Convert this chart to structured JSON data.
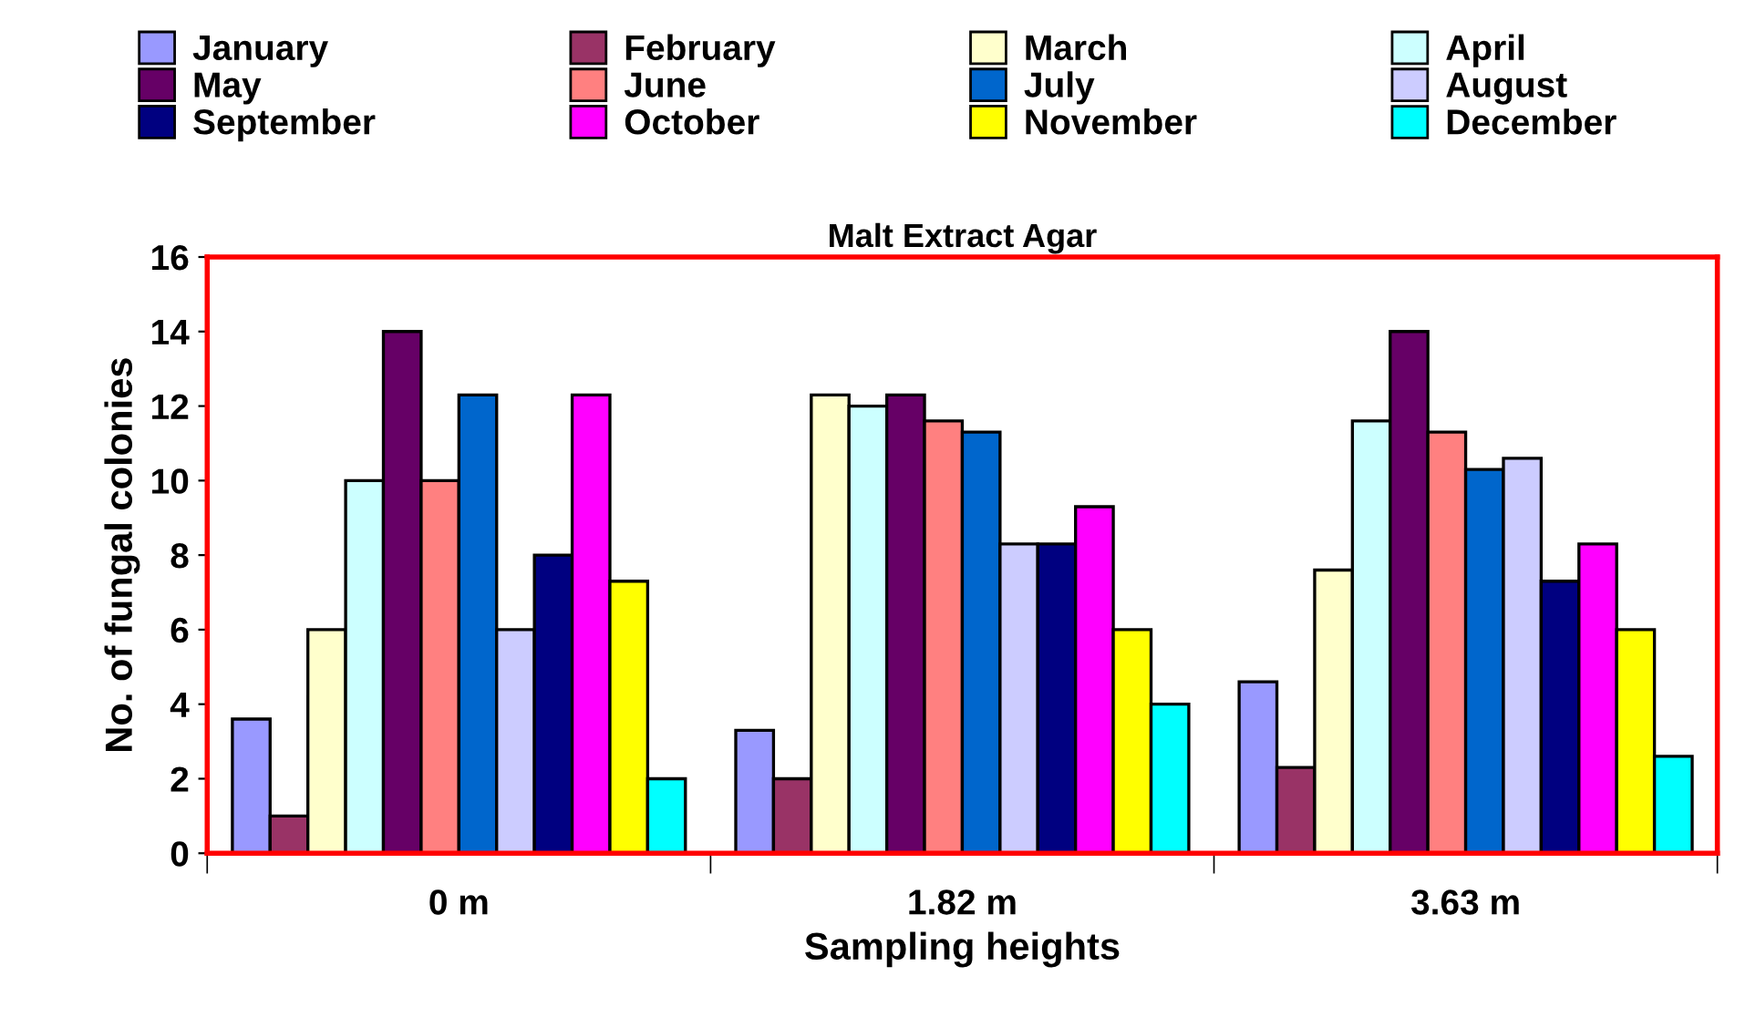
{
  "chart_data": {
    "type": "bar",
    "title": "Malt Extract Agar",
    "xlabel": "Sampling heights",
    "ylabel": "No. of fungal colonies",
    "categories": [
      "0 m",
      "1.82 m",
      "3.63 m"
    ],
    "series": [
      {
        "name": "January",
        "color": "#9999ff",
        "values": [
          3.6,
          3.3,
          4.6
        ]
      },
      {
        "name": "February",
        "color": "#993366",
        "values": [
          1,
          2,
          2.3
        ]
      },
      {
        "name": "March",
        "color": "#ffffcc",
        "values": [
          6,
          12.3,
          7.6
        ]
      },
      {
        "name": "April",
        "color": "#ccffff",
        "values": [
          10,
          12,
          11.6
        ]
      },
      {
        "name": "May",
        "color": "#660066",
        "values": [
          14,
          12.3,
          14
        ]
      },
      {
        "name": "June",
        "color": "#ff8080",
        "values": [
          10,
          11.6,
          11.3
        ]
      },
      {
        "name": "July",
        "color": "#0066cc",
        "values": [
          12.3,
          11.3,
          10.3
        ]
      },
      {
        "name": "August",
        "color": "#ccccff",
        "values": [
          6,
          8.3,
          10.6
        ]
      },
      {
        "name": "September",
        "color": "#000080",
        "values": [
          8,
          8.3,
          7.3
        ]
      },
      {
        "name": "October",
        "color": "#ff00ff",
        "values": [
          12.3,
          9.3,
          8.3
        ]
      },
      {
        "name": "November",
        "color": "#ffff00",
        "values": [
          7.3,
          6,
          6
        ]
      },
      {
        "name": "December",
        "color": "#00ffff",
        "values": [
          2,
          4,
          2.6
        ]
      }
    ],
    "ylim": [
      0,
      16
    ],
    "yticks": [
      0,
      2,
      4,
      6,
      8,
      10,
      12,
      14,
      16
    ],
    "grid": false,
    "legend": "top"
  }
}
